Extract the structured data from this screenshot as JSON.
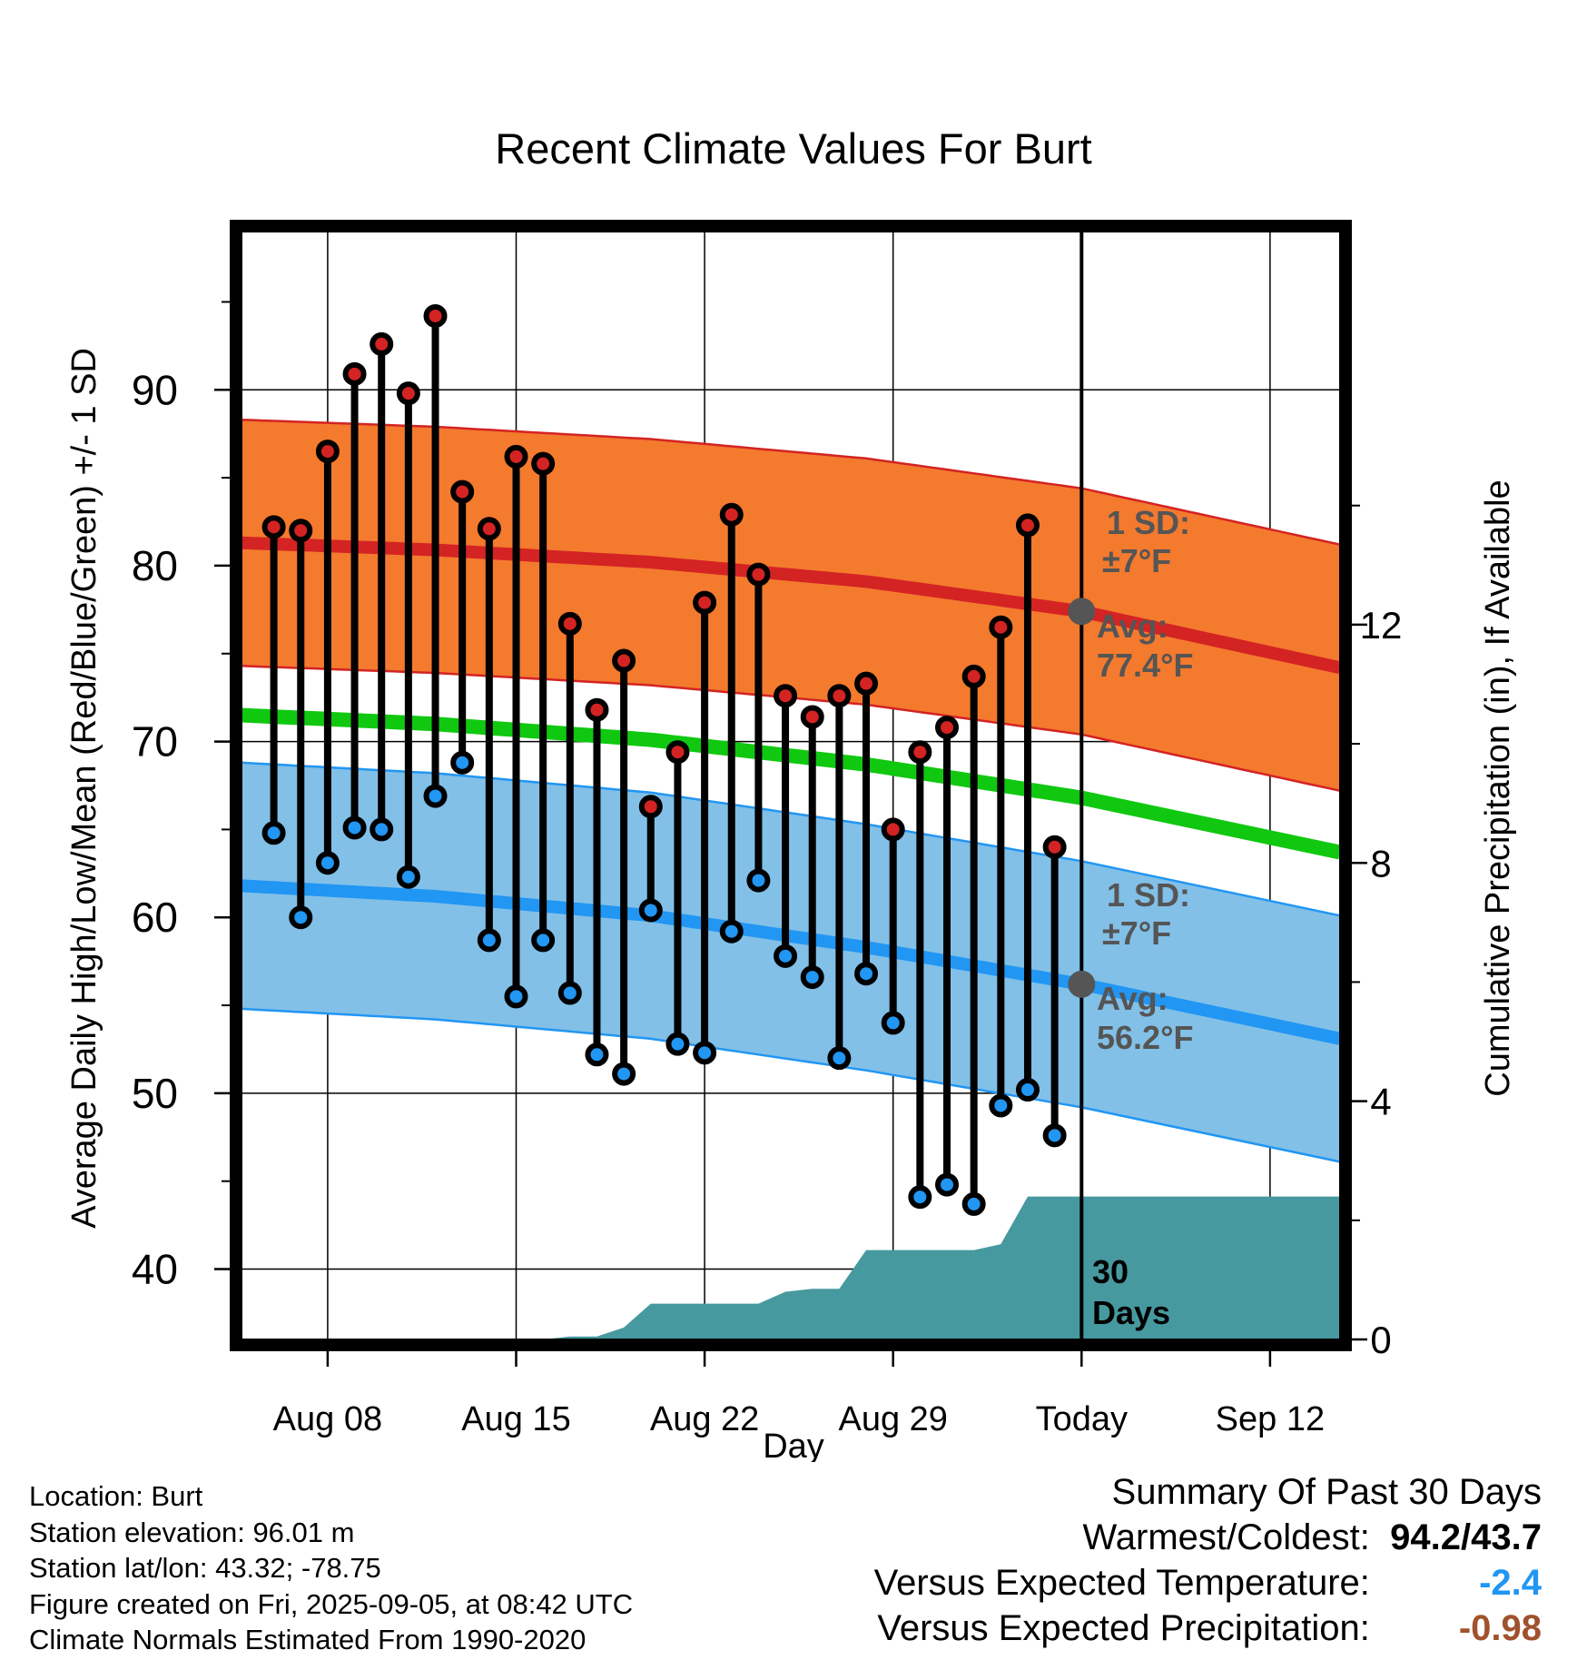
{
  "chart_data": {
    "type": "line",
    "title": "Recent Climate Values For Burt",
    "xlabel": "Day",
    "ylabel": "Average Daily High/Low/Mean (Red/Blue/Green) +/- 1 SD",
    "y2label": "Cumulative Precipitation (in), If Available",
    "x_ticks": [
      "Aug 08",
      "Aug 15",
      "Aug 22",
      "Aug 29",
      "Today",
      "Sep 12"
    ],
    "x_tick_days": [
      8,
      15,
      22,
      29,
      36,
      43
    ],
    "x_range": [
      4.8,
      45.6
    ],
    "today_day": 36,
    "ylim": [
      36,
      99
    ],
    "y_ticks": [
      40,
      50,
      60,
      70,
      80,
      90
    ],
    "y2lim": [
      0,
      18.6
    ],
    "y2_ticks": [
      0,
      4,
      8,
      12
    ],
    "grid": true,
    "days": [
      6,
      7,
      8,
      9,
      10,
      11,
      12,
      13,
      14,
      15,
      16,
      17,
      18,
      19,
      20,
      21,
      22,
      23,
      24,
      25,
      26,
      27,
      28,
      29,
      30,
      31,
      32,
      33,
      34,
      35
    ],
    "series": [
      {
        "name": "High",
        "color": "#d42323",
        "values": [
          82.2,
          82.0,
          86.5,
          90.9,
          92.6,
          89.8,
          94.2,
          84.2,
          82.1,
          86.2,
          85.8,
          76.7,
          71.8,
          74.6,
          66.3,
          69.4,
          77.9,
          82.9,
          79.5,
          72.6,
          71.4,
          72.6,
          73.3,
          65.0,
          69.4,
          70.8,
          73.7,
          76.5,
          82.3,
          64.0
        ]
      },
      {
        "name": "Low",
        "color": "#2196f3",
        "values": [
          64.8,
          60.0,
          63.1,
          65.1,
          65.0,
          62.3,
          66.9,
          68.8,
          58.7,
          55.5,
          58.7,
          55.7,
          52.2,
          51.1,
          60.4,
          52.8,
          52.3,
          59.2,
          62.1,
          57.8,
          56.6,
          52.0,
          56.8,
          54.0,
          44.1,
          44.8,
          43.7,
          49.3,
          50.2,
          47.6
        ]
      },
      {
        "name": "Precipitation",
        "color": "#46999f",
        "values": [
          0,
          0,
          0,
          0,
          0,
          0,
          0,
          0,
          0,
          0,
          0,
          0.05,
          0.05,
          0.2,
          0.6,
          0.6,
          0.6,
          0.6,
          0.6,
          0.8,
          0.85,
          0.85,
          1.5,
          1.5,
          1.5,
          1.5,
          1.5,
          1.6,
          2.4,
          2.4
        ]
      }
    ],
    "normals": {
      "days": [
        4.8,
        12,
        20,
        28,
        36,
        45.6
      ],
      "high_mean": [
        81.3,
        80.9,
        80.2,
        79.1,
        77.4,
        74.2
      ],
      "high_sd": 7,
      "low_mean": [
        61.8,
        61.2,
        60.1,
        58.3,
        56.2,
        53.1
      ],
      "low_sd": 7,
      "mean": [
        71.5,
        71.0,
        70.1,
        68.7,
        66.8,
        63.7
      ]
    },
    "annotations": {
      "high_sd_label": "1 SD:",
      "high_sd_value": "±7°F",
      "high_avg_label": "Avg:",
      "high_avg_value": "77.4°F",
      "low_sd_label": "1 SD:",
      "low_sd_value": "±7°F",
      "low_avg_label": "Avg:",
      "low_avg_value": "56.2°F",
      "precip_days": "30",
      "precip_days_label": "Days"
    },
    "colors": {
      "high_band": "#f47a2e",
      "high_line": "#d42323",
      "low_band": "#82c0e8",
      "low_line": "#2196f3",
      "mean_line": "#10c810",
      "precip_fill": "#46999f",
      "annotation_text": "#555555"
    }
  },
  "footer": {
    "location": "Location: Burt",
    "elevation": "Station elevation: 96.01 m",
    "latlon": "Station lat/lon: 43.32; -78.75",
    "created": "Figure created on Fri, 2025-09-05, at 08:42 UTC",
    "normals": "Climate Normals Estimated From 1990-2020"
  },
  "summary": {
    "title": "Summary Of Past 30 Days",
    "warm_cold_label": "Warmest/Coldest:",
    "warm_cold_value": "94.2/43.7",
    "temp_label": "Versus Expected Temperature:",
    "temp_value": "-2.4",
    "precip_label": "Versus Expected Precipitation:",
    "precip_value": "-0.98"
  }
}
